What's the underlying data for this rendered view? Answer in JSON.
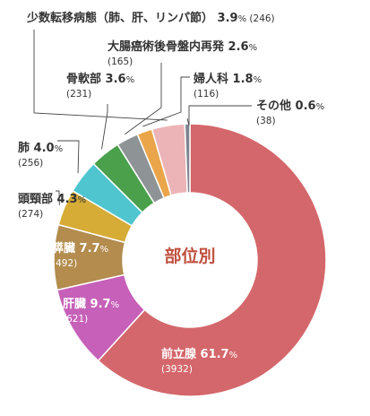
{
  "chart_data": {
    "type": "pie",
    "title": "部位別",
    "unit": "%",
    "categories": [
      "前立腺",
      "肝臓",
      "膵臓",
      "頭頸部",
      "肺",
      "骨軟部",
      "大腸癌術後骨盤内再発",
      "婦人科",
      "少数転移病態（肺、肝、リンパ節）",
      "その他"
    ],
    "values": [
      61.7,
      9.7,
      7.7,
      4.3,
      4.0,
      3.6,
      2.6,
      1.8,
      3.9,
      0.6
    ],
    "counts": [
      "3932",
      "621",
      "492",
      "274",
      "256",
      "231",
      "165",
      "116",
      "246",
      "38"
    ],
    "colors": [
      "#d4676b",
      "#c660b8",
      "#b38c4e",
      "#d6ac37",
      "#4fc5d0",
      "#4aa04b",
      "#8e9396",
      "#eaa54a",
      "#ecb4b6",
      "#7e8590"
    ]
  }
}
